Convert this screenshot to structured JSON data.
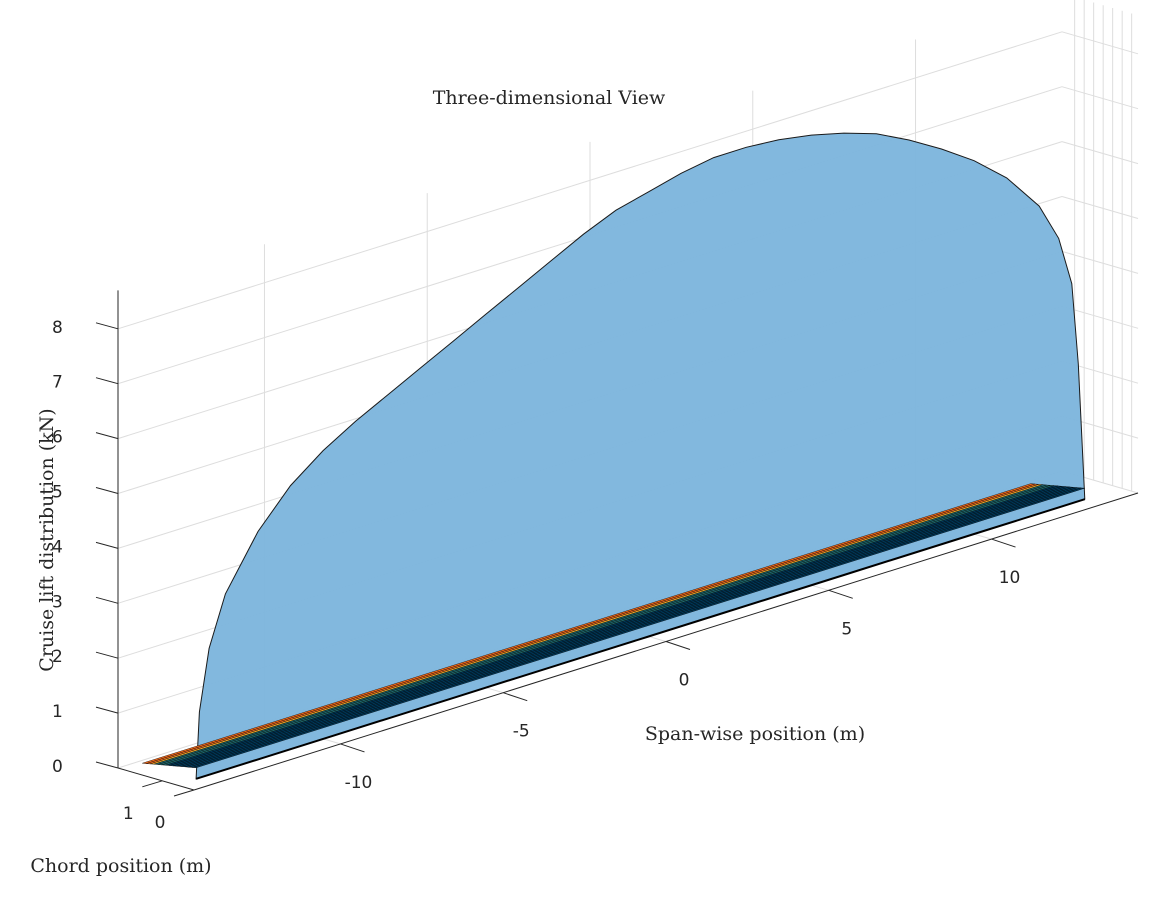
{
  "chart_data": {
    "type": "surface3d",
    "title": "Three-dimensional View",
    "xlabel": "Span-wise position (m)",
    "ylabel": "Chord position (m)",
    "zlabel": "Cruise lift distribution (kN)",
    "x_ticks": [
      -10,
      -5,
      0,
      5,
      10
    ],
    "y_ticks": [
      1,
      0
    ],
    "z_ticks": [
      0,
      1,
      2,
      3,
      4,
      5,
      6,
      7,
      8
    ],
    "xlim": [
      -14.5,
      14.5
    ],
    "ylim": [
      0,
      2.4
    ],
    "zlim": [
      0,
      8.7
    ],
    "grid": true,
    "lift_distribution": {
      "x": [
        -13.9,
        -13.8,
        -13.5,
        -13.0,
        -12.0,
        -11.0,
        -10.0,
        -9.0,
        -8.0,
        -7.0,
        -6.0,
        -5.0,
        -4.0,
        -3.0,
        -2.0,
        -1.0,
        0.0,
        1.0,
        2.0,
        3.0,
        4.0,
        5.0,
        6.0,
        7.0,
        8.0,
        9.0,
        10.0,
        11.0,
        12.0,
        12.6,
        13.0,
        13.2,
        13.4
      ],
      "z": [
        0.0,
        1.2,
        2.3,
        3.2,
        4.15,
        4.8,
        5.25,
        5.6,
        5.9,
        6.2,
        6.5,
        6.8,
        7.1,
        7.4,
        7.7,
        7.95,
        8.1,
        8.25,
        8.35,
        8.35,
        8.3,
        8.2,
        8.05,
        7.85,
        7.55,
        7.2,
        6.8,
        6.3,
        5.6,
        4.9,
        4.0,
        2.5,
        0.0
      ]
    },
    "wing_planform": {
      "x": [
        -13.9,
        -12.0,
        -10.0,
        -8.0,
        -6.0,
        -4.0,
        -2.0,
        0.0,
        2.0,
        4.0,
        6.0,
        8.0,
        10.0,
        12.0,
        13.4
      ],
      "chord_leading_edge": [
        0.55,
        0.55,
        0.55,
        0.55,
        0.55,
        0.55,
        0.55,
        0.55,
        0.55,
        0.55,
        0.55,
        0.55,
        0.55,
        0.55,
        0.55
      ],
      "chord_trailing_edge": [
        2.25,
        2.25,
        2.25,
        2.25,
        2.25,
        2.25,
        2.25,
        2.25,
        2.25,
        2.25,
        2.25,
        2.25,
        2.25,
        2.25,
        2.25
      ]
    },
    "colors": {
      "lift_surface": "#7eb6dd",
      "planform_dark": "#003a5c",
      "planform_light": "#eda82c",
      "planform_edge": "#f36a1b",
      "grid": "#dddddd",
      "axis": "#262626"
    }
  }
}
